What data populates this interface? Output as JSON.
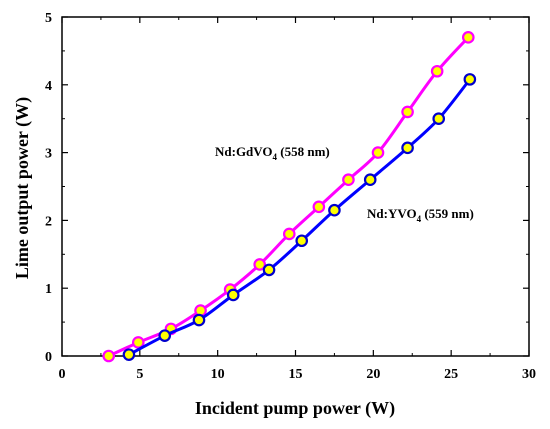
{
  "chart_data": {
    "type": "scatter",
    "xlabel": "Incident pump power (W)",
    "ylabel": "Lime output power (W)",
    "xlim": [
      0,
      30
    ],
    "ylim": [
      0,
      5
    ],
    "x_ticks": [
      "0",
      "5",
      "10",
      "15",
      "20",
      "25",
      "30"
    ],
    "y_ticks": [
      "0",
      "1",
      "2",
      "3",
      "4",
      "5"
    ],
    "grid": false,
    "series": [
      {
        "name": "Nd:GdVO4 (558 nm)",
        "label_main": "Nd:GdVO",
        "label_sub": "4",
        "label_tail": " (558 nm)",
        "line_color": "#ff00ff",
        "marker_fill": "#ffff00",
        "marker_edge": "#ff00ff",
        "x": [
          3.0,
          4.9,
          7.0,
          8.9,
          10.8,
          12.7,
          14.6,
          16.5,
          18.4,
          20.3,
          22.2,
          24.1,
          26.1
        ],
        "y": [
          0.0,
          0.2,
          0.4,
          0.67,
          0.98,
          1.35,
          1.8,
          2.2,
          2.6,
          3.0,
          3.6,
          4.2,
          4.7
        ]
      },
      {
        "name": "Nd:YVO4 (559 nm)",
        "label_main": "Nd:YVO",
        "label_sub": "4",
        "label_tail": " (559 nm)",
        "line_color": "#0000ff",
        "marker_fill": "#ffff00",
        "marker_edge": "#0000cc",
        "x": [
          4.3,
          6.6,
          8.8,
          11.0,
          13.3,
          15.4,
          17.5,
          19.8,
          22.2,
          24.2,
          26.2
        ],
        "y": [
          0.02,
          0.3,
          0.53,
          0.9,
          1.27,
          1.7,
          2.15,
          2.6,
          3.07,
          3.5,
          4.08
        ]
      }
    ]
  }
}
